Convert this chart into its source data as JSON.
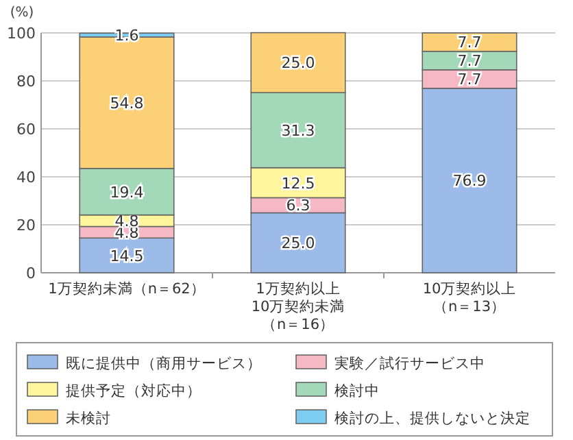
{
  "chart_data": {
    "type": "bar",
    "stacked": true,
    "ylabel": "(%)",
    "categories": [
      "1万契約未満（n＝62）",
      "1万契約以上10万契約未満（n＝16）",
      "10万契約以上（n＝13）"
    ],
    "series": [
      {
        "name": "既に提供中（商用サービス）",
        "color": "#9dbbe8",
        "values": [
          14.5,
          25.0,
          76.9
        ],
        "value_labels": [
          "14.5",
          "25.0",
          "76.9"
        ]
      },
      {
        "name": "実験／試行サービス中",
        "color": "#f5b8c4",
        "values": [
          4.8,
          6.3,
          7.7
        ],
        "value_labels": [
          "4.8",
          "6.3",
          "7.7"
        ]
      },
      {
        "name": "提供予定（対応中）",
        "color": "#fff59c",
        "values": [
          4.8,
          12.5,
          null
        ],
        "value_labels": [
          "4.8",
          "12.5",
          null
        ]
      },
      {
        "name": "検討中",
        "color": "#a3d9b8",
        "values": [
          19.4,
          31.3,
          7.7
        ],
        "value_labels": [
          "19.4",
          "31.3",
          "7.7"
        ]
      },
      {
        "name": "未検討",
        "color": "#fbd077",
        "values": [
          54.8,
          25.0,
          7.7
        ],
        "value_labels": [
          "54.8",
          "25.0",
          "7.7"
        ]
      },
      {
        "name": "検討の上、提供しないと決定",
        "color": "#7ecdf2",
        "values": [
          1.6,
          null,
          null
        ],
        "value_labels": [
          "1.6",
          null,
          null
        ]
      }
    ],
    "ylim": [
      0,
      100
    ],
    "yticks": [
      0,
      20,
      40,
      60,
      80,
      100
    ],
    "grid": "y",
    "legend": "bottom"
  }
}
